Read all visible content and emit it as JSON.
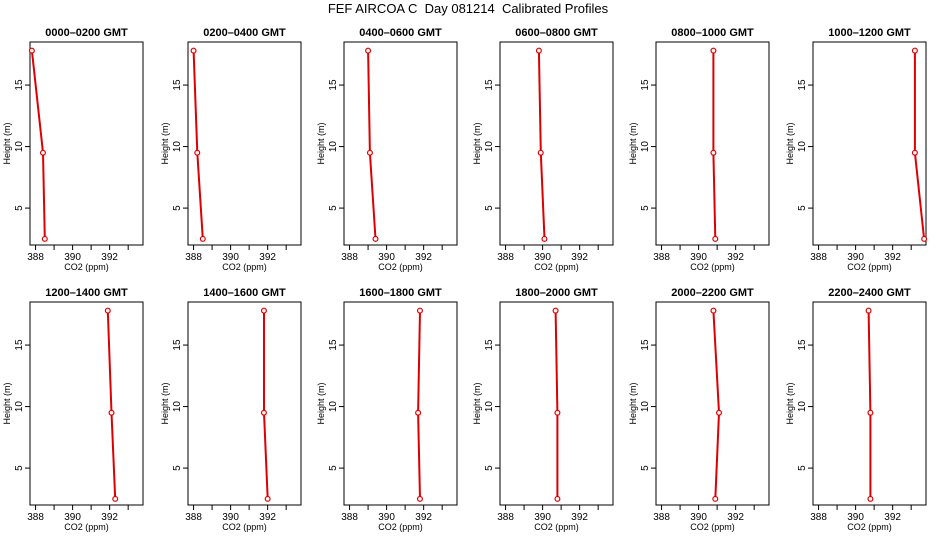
{
  "title": "FEF AIRCOA C  Day 081214  Calibrated Profiles",
  "chart_data": {
    "type": "line",
    "xlabel": "CO2 (ppm)",
    "ylabel": "Height (m)",
    "xlim": [
      387.7,
      393.8
    ],
    "ylim": [
      2.0,
      18.5
    ],
    "xticks": [
      388,
      390,
      392
    ],
    "yticks": [
      5,
      10,
      15
    ],
    "color": "#dd0000",
    "heights": [
      17.8,
      9.5,
      2.5
    ],
    "panels": [
      {
        "title": "0000–0200 GMT",
        "co2": [
          387.8,
          388.4,
          388.5
        ]
      },
      {
        "title": "0200–0400 GMT",
        "co2": [
          388.0,
          388.2,
          388.5
        ]
      },
      {
        "title": "0400–0600 GMT",
        "co2": [
          389.0,
          389.1,
          389.4
        ]
      },
      {
        "title": "0600–0800 GMT",
        "co2": [
          389.8,
          389.9,
          390.1
        ]
      },
      {
        "title": "0800–1000 GMT",
        "co2": [
          390.8,
          390.8,
          390.9
        ]
      },
      {
        "title": "1000–1200 GMT",
        "co2": [
          393.2,
          393.2,
          393.7
        ]
      },
      {
        "title": "1200–1400 GMT",
        "co2": [
          391.9,
          392.1,
          392.3
        ]
      },
      {
        "title": "1400–1600 GMT",
        "co2": [
          391.8,
          391.8,
          392.0
        ]
      },
      {
        "title": "1600–1800 GMT",
        "co2": [
          391.8,
          391.7,
          391.8
        ]
      },
      {
        "title": "1800–2000 GMT",
        "co2": [
          390.7,
          390.8,
          390.8
        ]
      },
      {
        "title": "2000–2200 GMT",
        "co2": [
          390.8,
          391.1,
          390.9
        ]
      },
      {
        "title": "2200–2400 GMT",
        "co2": [
          390.7,
          390.8,
          390.8
        ]
      }
    ]
  }
}
